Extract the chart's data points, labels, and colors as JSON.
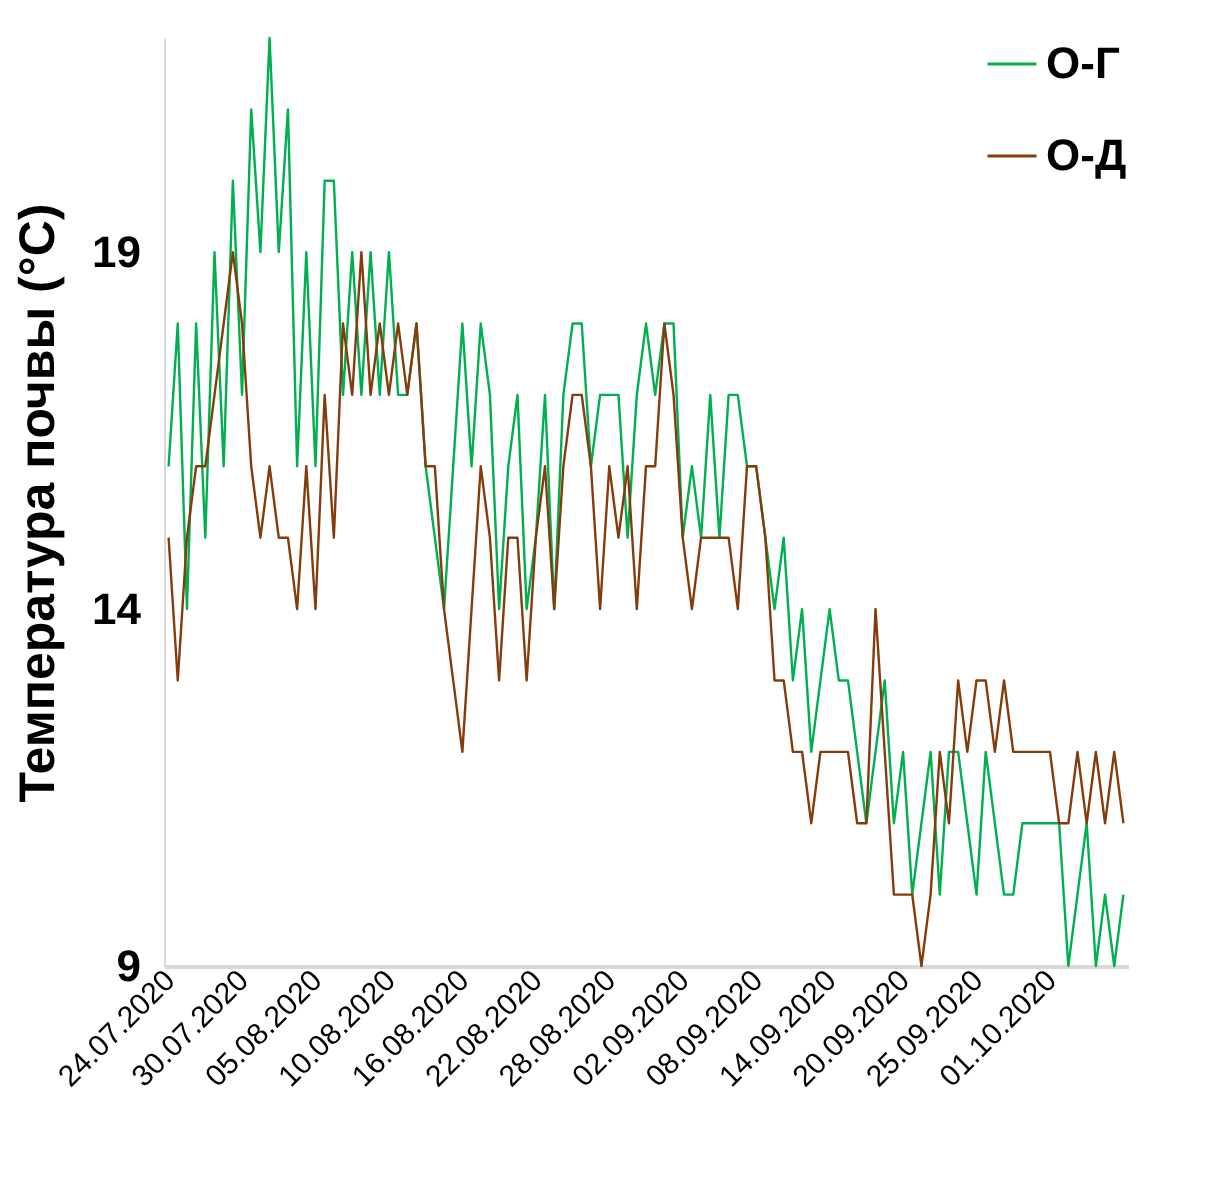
{
  "chart_data": {
    "type": "line",
    "ylabel": "Температура почвы (°C)",
    "categories": [
      "24.07.2020",
      null,
      null,
      null,
      null,
      null,
      null,
      null,
      "30.07.2020",
      null,
      null,
      null,
      null,
      null,
      null,
      null,
      "05.08.2020",
      null,
      null,
      null,
      null,
      null,
      null,
      null,
      "10.08.2020",
      null,
      null,
      null,
      null,
      null,
      null,
      null,
      "16.08.2020",
      null,
      null,
      null,
      null,
      null,
      null,
      null,
      "22.08.2020",
      null,
      null,
      null,
      null,
      null,
      null,
      null,
      "28.08.2020",
      null,
      null,
      null,
      null,
      null,
      null,
      null,
      "02.09.2020",
      null,
      null,
      null,
      null,
      null,
      null,
      null,
      "08.09.2020",
      null,
      null,
      null,
      null,
      null,
      null,
      null,
      "14.09.2020",
      null,
      null,
      null,
      null,
      null,
      null,
      null,
      "20.09.2020",
      null,
      null,
      null,
      null,
      null,
      null,
      null,
      "25.09.2020",
      null,
      null,
      null,
      null,
      null,
      null,
      null,
      "01.10.2020",
      null,
      null,
      null,
      null,
      null,
      null,
      null,
      null
    ],
    "series": [
      {
        "name": "О-Г",
        "color": "#00b050",
        "values": [
          16,
          18,
          14,
          18,
          15,
          19,
          16,
          20,
          17,
          21,
          19,
          22,
          19,
          21,
          16,
          19,
          16,
          20,
          20,
          17,
          19,
          17,
          19,
          17,
          19,
          17,
          17,
          18,
          16,
          15,
          14,
          16,
          18,
          16,
          18,
          17,
          14,
          16,
          17,
          14,
          15,
          17,
          14,
          17,
          18,
          18,
          16,
          17,
          17,
          17,
          15,
          17,
          18,
          17,
          18,
          18,
          15,
          16,
          15,
          17,
          15,
          17,
          17,
          16,
          16,
          15,
          14,
          15,
          13,
          14,
          12,
          13,
          14,
          13,
          13,
          12,
          11,
          12,
          13,
          11,
          12,
          10,
          11,
          12,
          10,
          12,
          12,
          11,
          10,
          12,
          11,
          10,
          10,
          11,
          11,
          11,
          11,
          11,
          9,
          10,
          11,
          9,
          10,
          9,
          10
        ]
      },
      {
        "name": "О-Д",
        "color": "#843c0c",
        "values": [
          15,
          13,
          15,
          16,
          16,
          17,
          18,
          19,
          18,
          16,
          15,
          16,
          15,
          15,
          14,
          16,
          14,
          17,
          15,
          18,
          17,
          19,
          17,
          18,
          17,
          18,
          17,
          18,
          16,
          16,
          14,
          13,
          12,
          14,
          16,
          15,
          13,
          15,
          15,
          13,
          15,
          16,
          14,
          16,
          17,
          17,
          16,
          14,
          16,
          15,
          16,
          14,
          16,
          16,
          18,
          17,
          15,
          14,
          15,
          15,
          15,
          15,
          14,
          16,
          16,
          15,
          13,
          13,
          12,
          12,
          11,
          12,
          12,
          12,
          12,
          11,
          11,
          14,
          12,
          10,
          10,
          10,
          9,
          10,
          12,
          11,
          13,
          12,
          13,
          13,
          12,
          13,
          12,
          12,
          12,
          12,
          12,
          11,
          11,
          12,
          11,
          12,
          11,
          12,
          11
        ]
      }
    ],
    "ylim": [
      9,
      22
    ],
    "yticks": [
      9,
      14,
      19
    ],
    "grid": false,
    "legend": "top right",
    "marker": "none",
    "line_style": "solid"
  }
}
